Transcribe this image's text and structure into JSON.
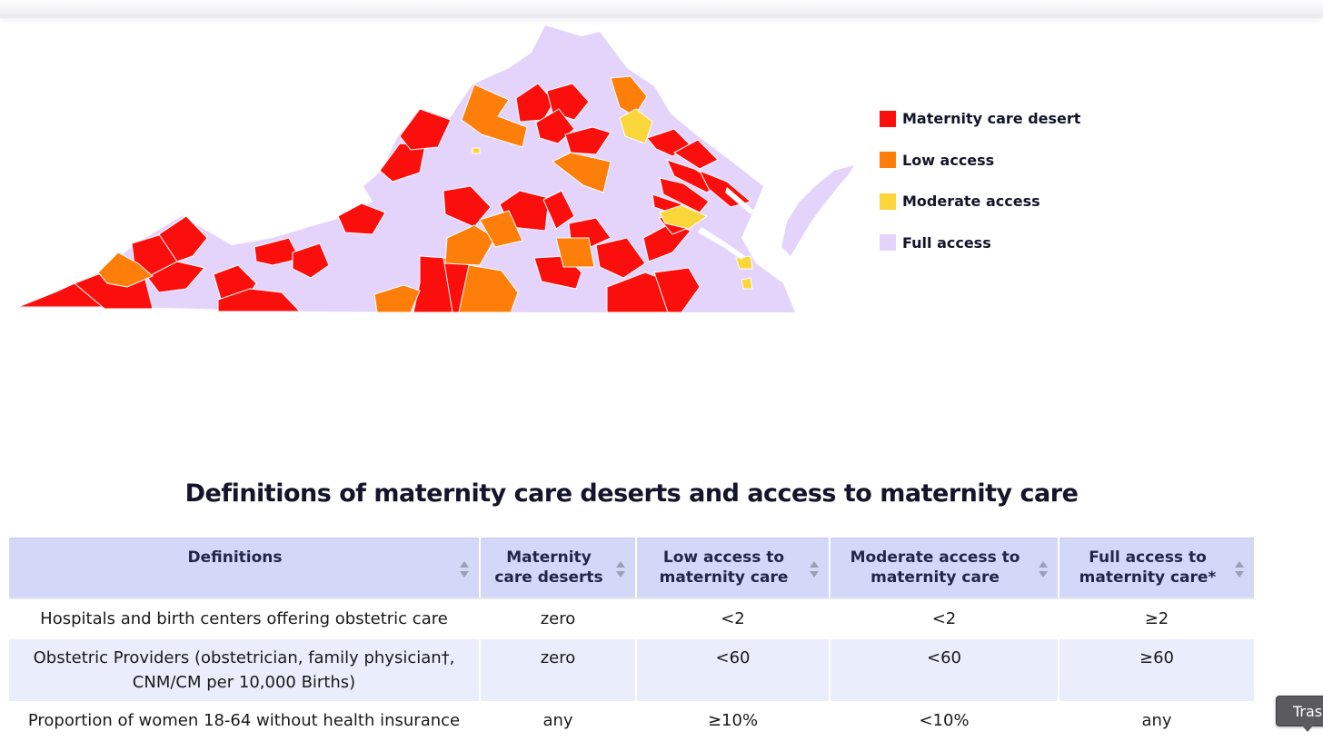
{
  "map": {
    "colors": {
      "desert": "#fa0f0c",
      "low": "#fd7f0a",
      "moderate": "#fbd63a",
      "full": "#e4d4fc",
      "border": "#ffffff"
    }
  },
  "legend": {
    "items": [
      {
        "label": "Maternity care desert",
        "color": "#fa0f0c"
      },
      {
        "label": "Low access",
        "color": "#fd7f0a"
      },
      {
        "label": "Moderate access",
        "color": "#fbd63a"
      },
      {
        "label": "Full access",
        "color": "#e4d4fc"
      }
    ]
  },
  "definitions": {
    "title": "Definitions of maternity care deserts and access to maternity care",
    "headers": [
      "Definitions",
      "Maternity care deserts",
      "Low access to maternity care",
      "Moderate access to maternity care",
      "Full access to maternity care*"
    ],
    "rows": [
      [
        "Hospitals and birth centers offering obstetric care",
        "zero",
        "<2",
        "<2",
        "≥2"
      ],
      [
        "Obstetric Providers (obstetrician, family physician†, CNM/CM per 10,000 Births)",
        "zero",
        "<60",
        "<60",
        "≥60"
      ],
      [
        "Proportion of women 18-64 without health insurance",
        "any",
        "≥10%",
        "<10%",
        "any"
      ]
    ],
    "header_bg": "#d3d8f8",
    "alt_row_bg": "#eaedfc"
  },
  "tooltip": {
    "label": "Tras"
  }
}
